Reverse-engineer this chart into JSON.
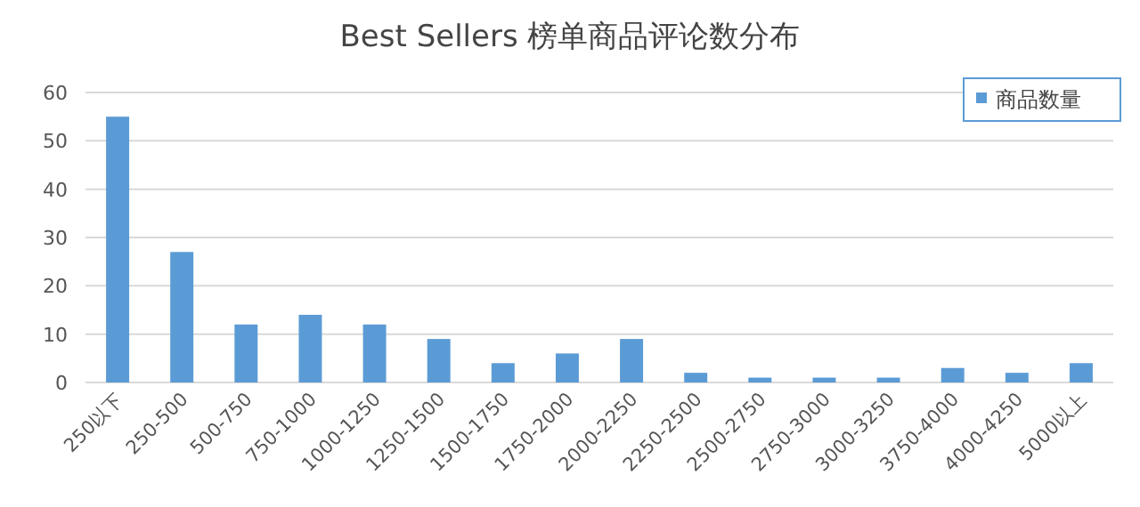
{
  "chart_data": {
    "type": "bar",
    "title": "Best Sellers 榜单商品评论数分布",
    "categories": [
      "250以下",
      "250-500",
      "500-750",
      "750-1000",
      "1000-1250",
      "1250-1500",
      "1500-1750",
      "1750-2000",
      "2000-2250",
      "2250-2500",
      "2500-2750",
      "2750-3000",
      "3000-3250",
      "3750-4000",
      "4000-4250",
      "5000以上"
    ],
    "series": [
      {
        "name": "商品数量",
        "color": "#5b9bd5",
        "values": [
          55,
          27,
          12,
          14,
          12,
          9,
          4,
          6,
          9,
          2,
          1,
          1,
          1,
          3,
          2,
          4
        ]
      }
    ],
    "ylim": [
      0,
      60
    ],
    "yticks": [
      0,
      10,
      20,
      30,
      40,
      50,
      60
    ],
    "grid": "y",
    "legend": "top right"
  }
}
